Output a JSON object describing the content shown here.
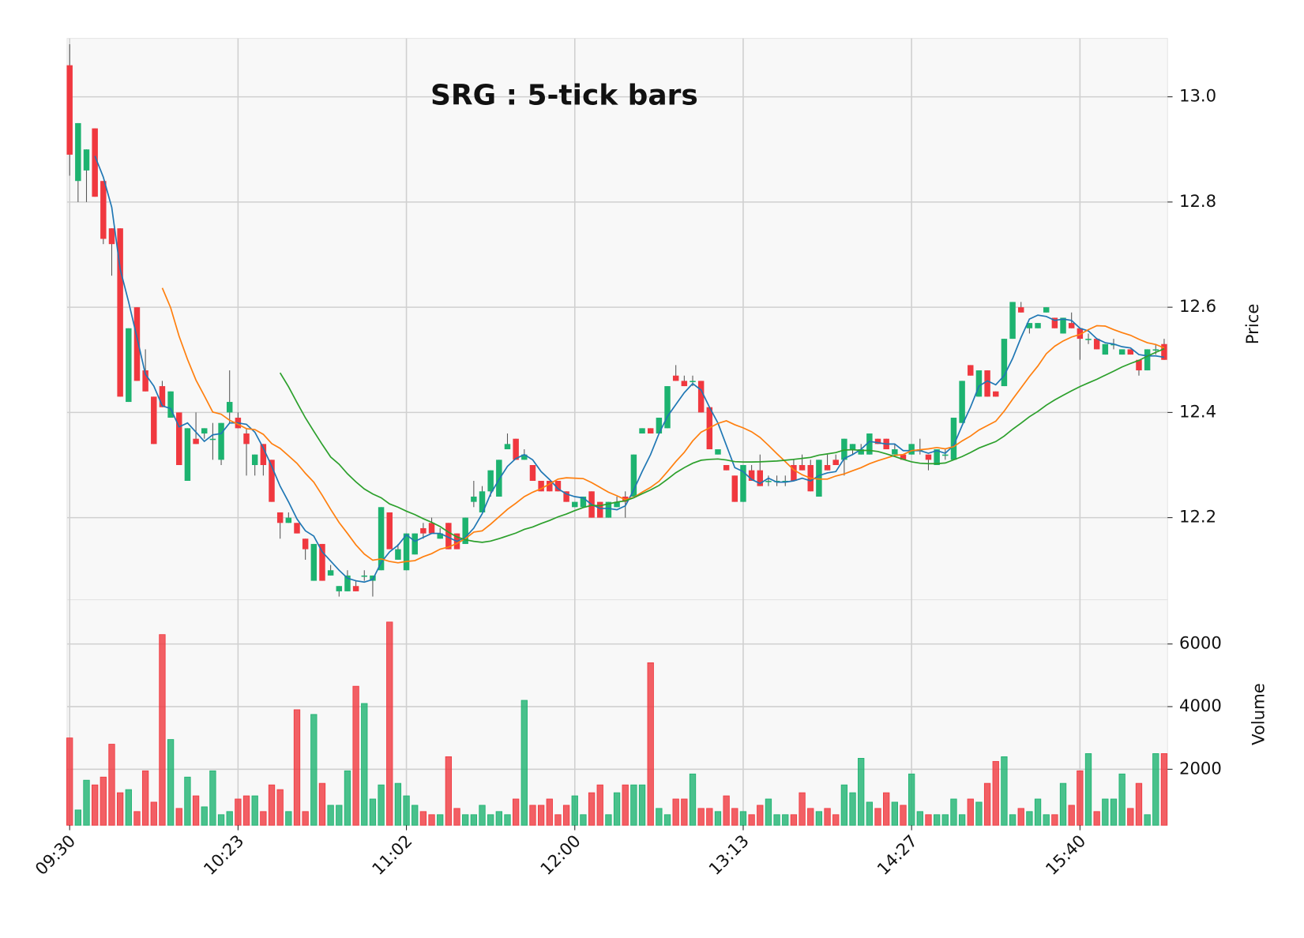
{
  "chart_data": {
    "type": "candlestick",
    "title": "SRG : 5-tick bars",
    "ylabel": "Price",
    "volume_label": "Volume",
    "xlim": [
      -0.3,
      130.4
    ],
    "xticks": [
      {
        "value": 0,
        "label": "09:30"
      },
      {
        "value": 20,
        "label": "10:23"
      },
      {
        "value": 40,
        "label": "11:02"
      },
      {
        "value": 60,
        "label": "12:00"
      },
      {
        "value": 80,
        "label": "13:13"
      },
      {
        "value": 100,
        "label": "14:27"
      },
      {
        "value": 120,
        "label": "15:40"
      }
    ],
    "ylim": [
      12.044,
      13.111
    ],
    "yticks": [
      12.2,
      12.4,
      12.6,
      12.8,
      {
        "value": 13,
        "label": "13.0"
      }
    ],
    "volume_ylim": [
      213,
      7413
    ],
    "volume_yticks": [
      2000,
      4000,
      6000
    ],
    "grid": true,
    "up_color": "#1db370",
    "down_color": "#f0383f",
    "mav": [
      4,
      12,
      26
    ],
    "mav_colors": [
      "#1f77b4",
      "#ff7f0e",
      "#2ca02c"
    ],
    "open": [
      13.06,
      12.84,
      12.86,
      12.94,
      12.84,
      12.75,
      12.75,
      12.42,
      12.6,
      12.48,
      12.43,
      12.45,
      12.39,
      12.4,
      12.27,
      12.35,
      12.36,
      12.35,
      12.31,
      12.4,
      12.39,
      12.36,
      12.3,
      12.34,
      12.31,
      12.21,
      12.19,
      12.19,
      12.16,
      12.08,
      12.15,
      12.09,
      12.06,
      12.06,
      12.07,
      12.09,
      12.08,
      12.1,
      12.21,
      12.12,
      12.1,
      12.13,
      12.18,
      12.19,
      12.16,
      12.19,
      12.17,
      12.15,
      12.23,
      12.21,
      12.25,
      12.24,
      12.33,
      12.35,
      12.31,
      12.3,
      12.27,
      12.27,
      12.27,
      12.25,
      12.22,
      12.22,
      12.25,
      12.23,
      12.2,
      12.22,
      12.24,
      12.24,
      12.36,
      12.37,
      12.36,
      12.37,
      12.47,
      12.46,
      12.46,
      12.46,
      12.41,
      12.32,
      12.3,
      12.28,
      12.23,
      12.29,
      12.29,
      12.27,
      12.27,
      12.27,
      12.3,
      12.3,
      12.3,
      12.24,
      12.3,
      12.31,
      12.31,
      12.33,
      12.32,
      12.32,
      12.35,
      12.35,
      12.32,
      12.32,
      12.32,
      12.33,
      12.32,
      12.3,
      12.32,
      12.31,
      12.38,
      12.49,
      12.43,
      12.48,
      12.44,
      12.45,
      12.54,
      12.6,
      12.56,
      12.56,
      12.59,
      12.58,
      12.55,
      12.57,
      12.56,
      12.54,
      12.54,
      12.51,
      12.53,
      12.51,
      12.52,
      12.5,
      12.48,
      12.52,
      12.53
    ],
    "high": [
      13.1,
      12.95,
      12.9,
      12.94,
      12.84,
      12.75,
      12.75,
      12.56,
      12.6,
      12.52,
      12.43,
      12.46,
      12.44,
      12.4,
      12.37,
      12.4,
      12.37,
      12.38,
      12.38,
      12.48,
      12.4,
      12.37,
      12.32,
      12.34,
      12.31,
      12.21,
      12.21,
      12.19,
      12.16,
      12.15,
      12.15,
      12.11,
      12.07,
      12.1,
      12.08,
      12.1,
      12.09,
      12.22,
      12.21,
      12.15,
      12.17,
      12.17,
      12.19,
      12.2,
      12.18,
      12.19,
      12.17,
      12.2,
      12.27,
      12.26,
      12.29,
      12.31,
      12.36,
      12.35,
      12.33,
      12.3,
      12.27,
      12.27,
      12.27,
      12.25,
      12.23,
      12.24,
      12.25,
      12.23,
      12.23,
      12.24,
      12.25,
      12.32,
      12.37,
      12.37,
      12.39,
      12.45,
      12.49,
      12.47,
      12.47,
      12.46,
      12.41,
      12.33,
      12.3,
      12.28,
      12.3,
      12.3,
      12.32,
      12.28,
      12.28,
      12.28,
      12.31,
      12.32,
      12.31,
      12.31,
      12.32,
      12.32,
      12.35,
      12.34,
      12.34,
      12.36,
      12.35,
      12.35,
      12.34,
      12.32,
      12.34,
      12.35,
      12.32,
      12.33,
      12.33,
      12.39,
      12.46,
      12.49,
      12.48,
      12.48,
      12.44,
      12.54,
      12.61,
      12.61,
      12.57,
      12.57,
      12.6,
      12.58,
      12.58,
      12.59,
      12.56,
      12.55,
      12.54,
      12.53,
      12.54,
      12.52,
      12.52,
      12.5,
      12.52,
      12.53,
      12.54
    ],
    "low": [
      12.85,
      12.8,
      12.8,
      12.81,
      12.72,
      12.66,
      12.43,
      12.42,
      12.46,
      12.44,
      12.34,
      12.41,
      12.39,
      12.3,
      12.27,
      12.34,
      12.35,
      12.31,
      12.3,
      12.38,
      12.37,
      12.28,
      12.28,
      12.28,
      12.23,
      12.16,
      12.19,
      12.17,
      12.12,
      12.08,
      12.08,
      12.09,
      12.05,
      12.06,
      12.06,
      12.08,
      12.05,
      12.1,
      12.14,
      12.12,
      12.1,
      12.13,
      12.16,
      12.17,
      12.16,
      12.14,
      12.14,
      12.15,
      12.22,
      12.21,
      12.24,
      12.24,
      12.33,
      12.31,
      12.31,
      12.27,
      12.25,
      12.25,
      12.25,
      12.23,
      12.22,
      12.22,
      12.2,
      12.2,
      12.2,
      12.22,
      12.2,
      12.24,
      12.36,
      12.36,
      12.36,
      12.37,
      12.46,
      12.45,
      12.45,
      12.4,
      12.33,
      12.32,
      12.29,
      12.23,
      12.23,
      12.27,
      12.26,
      12.26,
      12.26,
      12.26,
      12.27,
      12.29,
      12.25,
      12.24,
      12.29,
      12.3,
      12.28,
      12.32,
      12.32,
      12.32,
      12.34,
      12.33,
      12.32,
      12.31,
      12.32,
      12.32,
      12.29,
      12.3,
      12.31,
      12.31,
      12.38,
      12.47,
      12.43,
      12.43,
      12.43,
      12.45,
      12.54,
      12.59,
      12.55,
      12.56,
      12.59,
      12.56,
      12.55,
      12.56,
      12.5,
      12.53,
      12.52,
      12.51,
      12.52,
      12.51,
      12.51,
      12.47,
      12.48,
      12.51,
      12.5
    ],
    "close": [
      12.89,
      12.95,
      12.9,
      12.81,
      12.73,
      12.72,
      12.43,
      12.56,
      12.46,
      12.44,
      12.34,
      12.41,
      12.44,
      12.3,
      12.37,
      12.34,
      12.37,
      12.35,
      12.38,
      12.42,
      12.37,
      12.34,
      12.32,
      12.3,
      12.23,
      12.19,
      12.2,
      12.17,
      12.14,
      12.15,
      12.08,
      12.1,
      12.07,
      12.09,
      12.06,
      12.09,
      12.09,
      12.22,
      12.14,
      12.14,
      12.17,
      12.17,
      12.17,
      12.17,
      12.17,
      12.14,
      12.14,
      12.2,
      12.24,
      12.25,
      12.29,
      12.31,
      12.34,
      12.31,
      12.32,
      12.27,
      12.25,
      12.25,
      12.25,
      12.23,
      12.23,
      12.24,
      12.2,
      12.2,
      12.23,
      12.23,
      12.23,
      12.32,
      12.37,
      12.36,
      12.39,
      12.45,
      12.46,
      12.45,
      12.46,
      12.4,
      12.33,
      12.33,
      12.29,
      12.23,
      12.3,
      12.27,
      12.26,
      12.27,
      12.27,
      12.27,
      12.27,
      12.29,
      12.25,
      12.31,
      12.29,
      12.3,
      12.35,
      12.34,
      12.33,
      12.36,
      12.34,
      12.33,
      12.33,
      12.31,
      12.34,
      12.33,
      12.31,
      12.33,
      12.32,
      12.39,
      12.46,
      12.47,
      12.48,
      12.43,
      12.43,
      12.54,
      12.61,
      12.59,
      12.57,
      12.57,
      12.6,
      12.56,
      12.58,
      12.56,
      12.54,
      12.54,
      12.52,
      12.53,
      12.53,
      12.52,
      12.51,
      12.48,
      12.52,
      12.52,
      12.5
    ],
    "volume": [
      3000,
      700,
      1650,
      1500,
      1750,
      2800,
      1250,
      1350,
      650,
      1950,
      950,
      6300,
      2950,
      750,
      1750,
      1150,
      800,
      1950,
      550,
      650,
      1050,
      1150,
      1150,
      650,
      1500,
      1350,
      650,
      3900,
      650,
      3750,
      1550,
      850,
      850,
      1950,
      4650,
      4100,
      1050,
      1500,
      6700,
      1550,
      1150,
      850,
      650,
      550,
      550,
      2400,
      750,
      550,
      550,
      850,
      550,
      650,
      550,
      1050,
      4200,
      850,
      850,
      1050,
      550,
      850,
      1150,
      550,
      1250,
      1500,
      550,
      1250,
      1500,
      1500,
      1500,
      5400,
      750,
      550,
      1050,
      1050,
      1850,
      750,
      750,
      650,
      1150,
      750,
      650,
      550,
      850,
      1050,
      550,
      550,
      550,
      1250,
      750,
      650,
      750,
      550,
      1500,
      1250,
      2350,
      950,
      750,
      1250,
      950,
      850,
      1850,
      650,
      550,
      550,
      550,
      1050,
      550,
      1050,
      950,
      1550,
      2250,
      2400,
      550,
      750,
      650,
      1050,
      550,
      550,
      1550,
      850,
      1950,
      2500,
      650,
      1050,
      1050,
      1850,
      750,
      1550,
      550,
      2500,
      2500
    ]
  }
}
